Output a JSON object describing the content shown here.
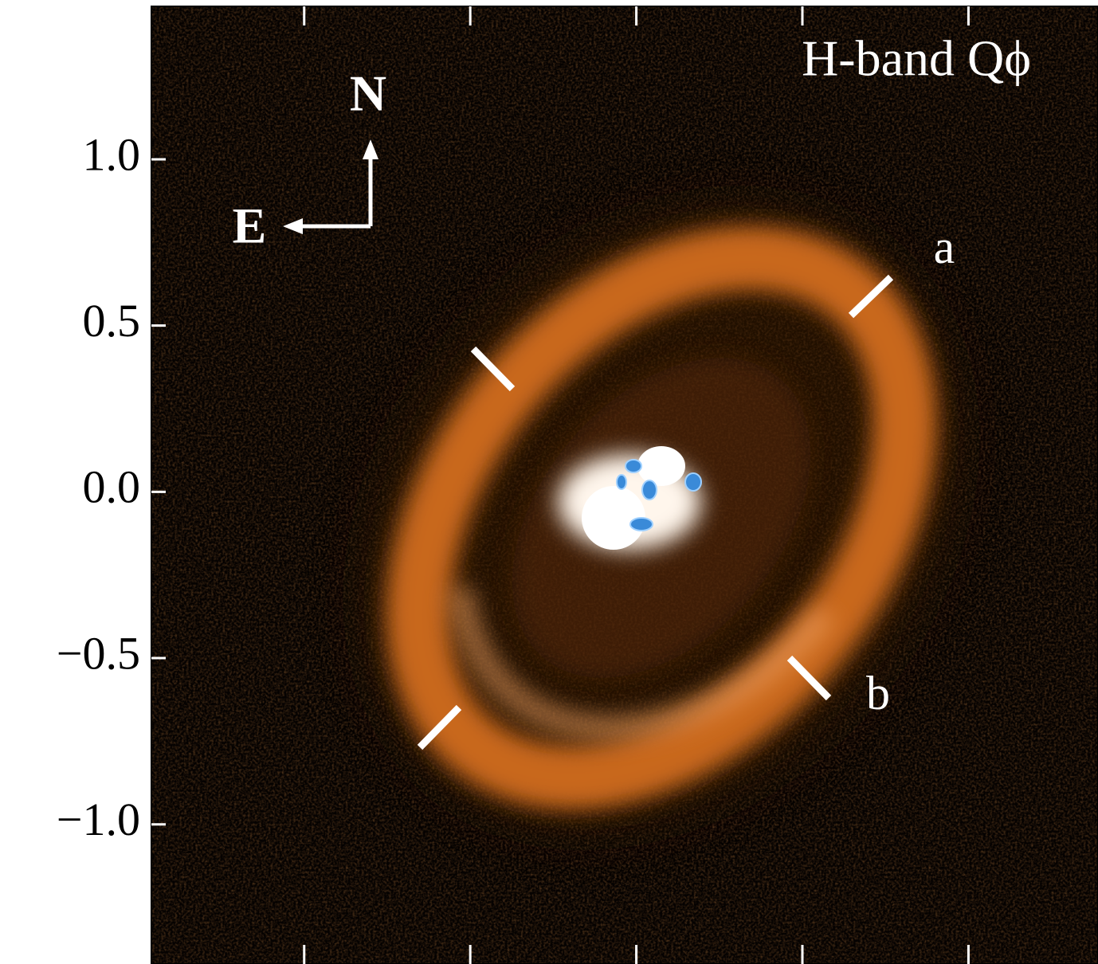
{
  "chart_data": {
    "type": "image",
    "title": "H-band Qϕ",
    "annotations": [
      "N",
      "E",
      "a",
      "b"
    ],
    "xlim": [
      -1.46,
      1.39
    ],
    "xticks": [
      -1,
      -0.5,
      0,
      0.5,
      1
    ],
    "ylim": [
      -1.42,
      1.46
    ],
    "yticks": [
      {
        "value": 1,
        "label": "1.0"
      },
      0.5,
      {
        "value": 0,
        "label": "0.0"
      },
      {
        "value": -0.5,
        "label": "−0.5"
      },
      {
        "value": -1,
        "label": "−1.0"
      }
    ]
  }
}
